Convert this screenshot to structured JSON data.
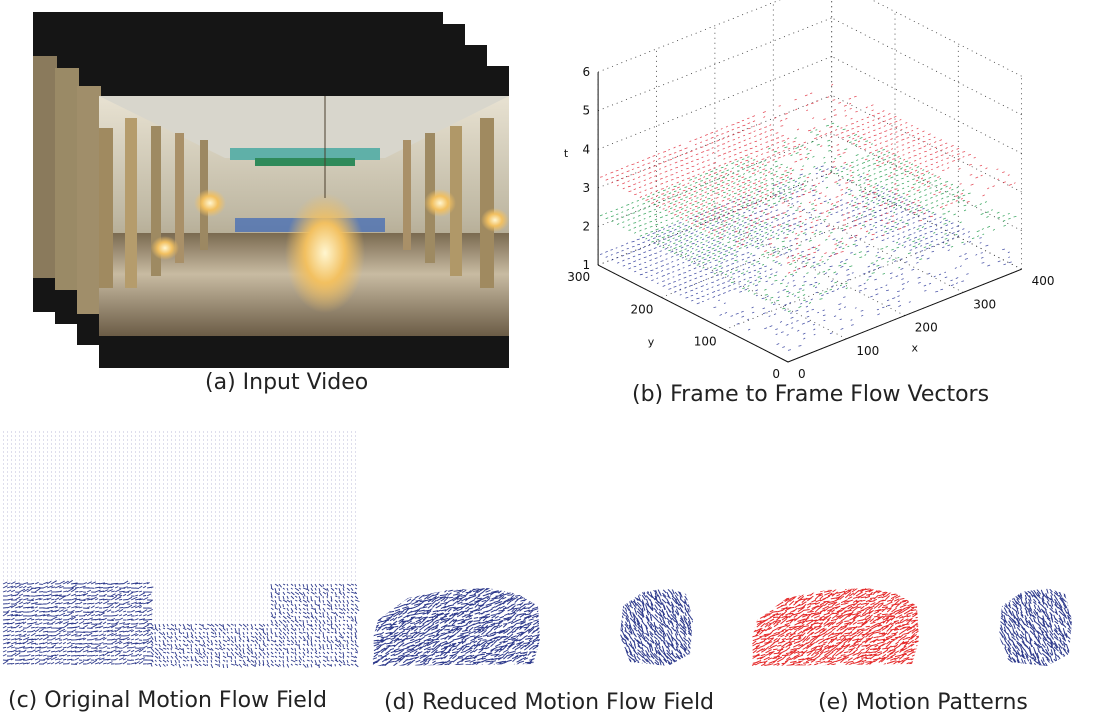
{
  "captions": {
    "a": "(a) Input Video",
    "b": "(b) Frame to Frame Flow Vectors",
    "c": "(c) Original Motion Flow Field",
    "d": "(d) Reduced Motion Flow Field",
    "e": "(e) Motion Patterns"
  },
  "plot3d": {
    "t_ticks": [
      "1",
      "2",
      "3",
      "4",
      "5",
      "6"
    ],
    "y_ticks": [
      "0",
      "100",
      "200",
      "300"
    ],
    "x_ticks": [
      "0",
      "100",
      "200",
      "300",
      "400"
    ],
    "t_label": "t",
    "y_label": "y",
    "x_label": "x",
    "layer_colors": [
      "#2e3a9a",
      "#1f9a4a",
      "#e03040"
    ]
  },
  "colors": {
    "flow_blue": "#2e3a8c",
    "pattern_red": "#e52a2a",
    "frame_border": "#141414"
  }
}
